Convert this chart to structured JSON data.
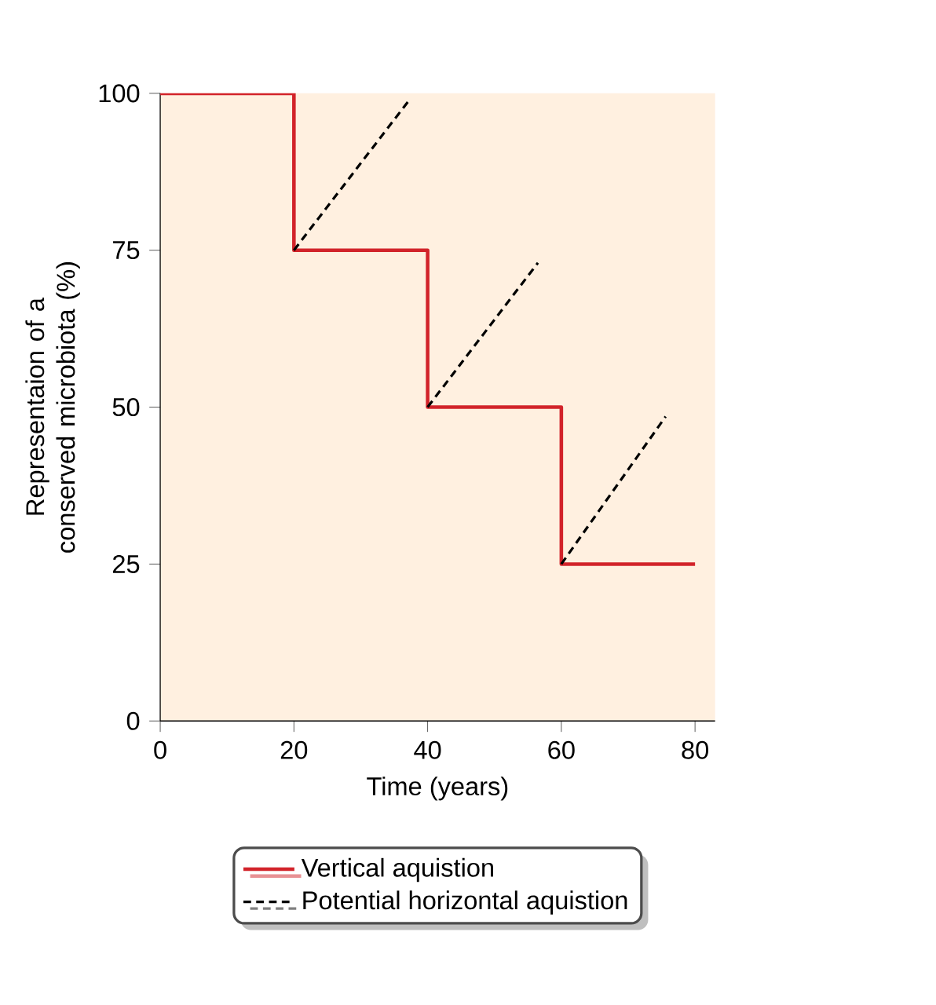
{
  "chart_data": {
    "type": "step",
    "xlabel": "Time (years)",
    "ylabel": "Representaion of a conserved microbiota (%)",
    "xlim": [
      0,
      83
    ],
    "ylim": [
      0,
      100
    ],
    "xticks": [
      0,
      20,
      40,
      60,
      80
    ],
    "yticks": [
      0,
      25,
      50,
      75,
      100
    ],
    "legend": "bottom",
    "grid": false,
    "series": [
      {
        "name": "Vertical aquistion",
        "color": "#d2232a",
        "line_style": "solid",
        "x": [
          0,
          20,
          40,
          60,
          80
        ],
        "values": [
          100,
          75,
          50,
          25,
          25
        ]
      },
      {
        "name": "Potential horizontal aquistion",
        "type": "line",
        "color": "#000000",
        "line_style": "dashed",
        "x": [
          20,
          37.3,
          null,
          40,
          56.5,
          null,
          60,
          75.6
        ],
        "values": [
          75,
          99,
          null,
          50,
          73,
          null,
          25,
          48.5
        ]
      }
    ]
  }
}
